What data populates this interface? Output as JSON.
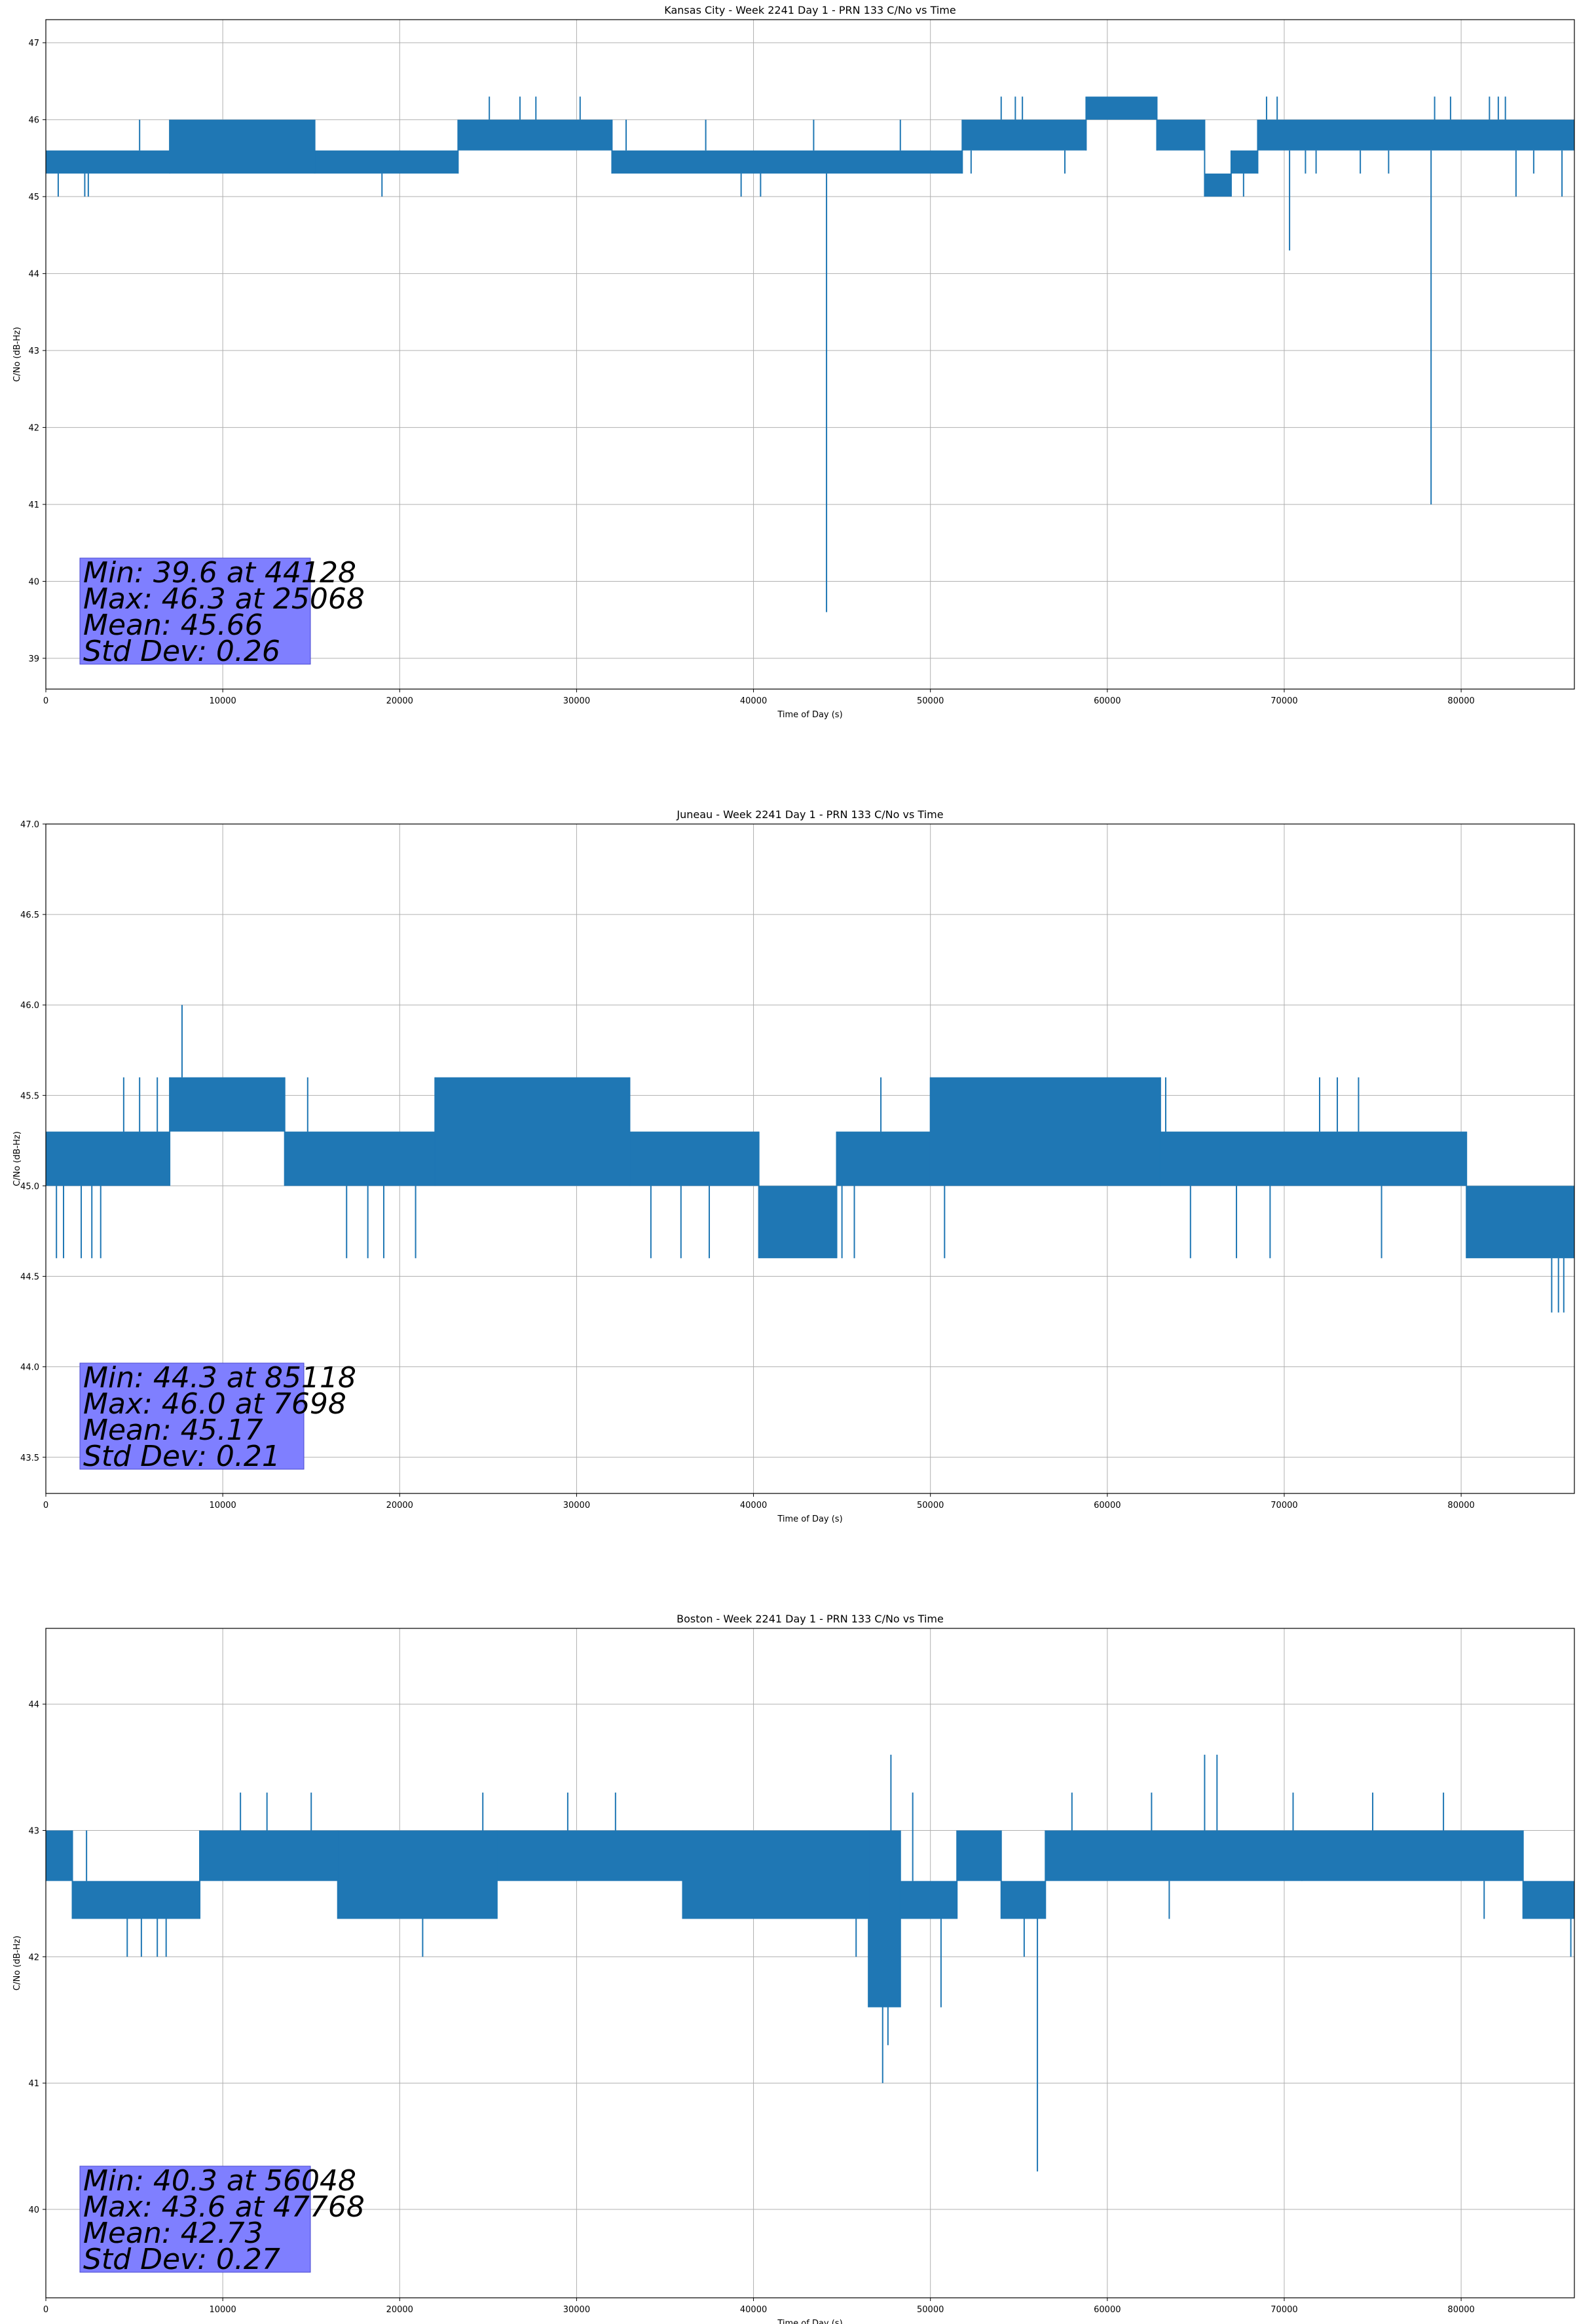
{
  "chart_data": [
    {
      "type": "line",
      "title": "Kansas City - Week 2241 Day 1 - PRN 133 C/No vs Time",
      "xlabel": "Time of Day (s)",
      "ylabel": "C/No (dB-Hz)",
      "xlim": [
        0,
        86400
      ],
      "ylim": [
        38.6,
        47.3
      ],
      "xticks": [
        0,
        10000,
        20000,
        30000,
        40000,
        50000,
        60000,
        70000,
        80000
      ],
      "yticks": [
        39,
        40,
        41,
        42,
        43,
        44,
        45,
        46,
        47
      ],
      "grid": true,
      "color": "#1f77b4",
      "series": [
        {
          "bands": [
            {
              "x0": 0,
              "x1": 7000,
              "low": 45.3,
              "high": 45.6
            },
            {
              "x0": 7000,
              "x1": 15200,
              "low": 45.3,
              "high": 46.0
            },
            {
              "x0": 15200,
              "x1": 23300,
              "low": 45.3,
              "high": 45.6
            },
            {
              "x0": 23300,
              "x1": 32000,
              "low": 45.6,
              "high": 46.0
            },
            {
              "x0": 32000,
              "x1": 51800,
              "low": 45.3,
              "high": 45.6
            },
            {
              "x0": 51800,
              "x1": 58800,
              "low": 45.6,
              "high": 46.0
            },
            {
              "x0": 58800,
              "x1": 62800,
              "low": 46.0,
              "high": 46.3
            },
            {
              "x0": 62800,
              "x1": 65500,
              "low": 45.6,
              "high": 46.0
            },
            {
              "x0": 65500,
              "x1": 67000,
              "low": 45.0,
              "high": 45.3
            },
            {
              "x0": 67000,
              "x1": 68500,
              "low": 45.3,
              "high": 45.6
            },
            {
              "x0": 68500,
              "x1": 86400,
              "low": 45.6,
              "high": 46.0
            }
          ],
          "spikes": [
            {
              "x": 700,
              "y": 45.0
            },
            {
              "x": 2200,
              "y": 45.0
            },
            {
              "x": 2400,
              "y": 45.0
            },
            {
              "x": 5300,
              "y": 46.0
            },
            {
              "x": 19000,
              "y": 45.0
            },
            {
              "x": 25068,
              "y": 46.3
            },
            {
              "x": 26800,
              "y": 46.3
            },
            {
              "x": 27700,
              "y": 46.3
            },
            {
              "x": 30200,
              "y": 46.3
            },
            {
              "x": 32800,
              "y": 46.0
            },
            {
              "x": 37300,
              "y": 46.0
            },
            {
              "x": 39300,
              "y": 45.0
            },
            {
              "x": 40400,
              "y": 45.0
            },
            {
              "x": 43400,
              "y": 46.0
            },
            {
              "x": 44128,
              "y": 39.6
            },
            {
              "x": 48300,
              "y": 46.0
            },
            {
              "x": 52300,
              "y": 45.3
            },
            {
              "x": 54000,
              "y": 46.3
            },
            {
              "x": 54800,
              "y": 46.3
            },
            {
              "x": 55200,
              "y": 46.3
            },
            {
              "x": 57600,
              "y": 45.3
            },
            {
              "x": 64000,
              "y": 45.6
            },
            {
              "x": 64900,
              "y": 45.6
            },
            {
              "x": 67700,
              "y": 45.0
            },
            {
              "x": 69000,
              "y": 46.3
            },
            {
              "x": 69600,
              "y": 46.3
            },
            {
              "x": 70300,
              "y": 44.3
            },
            {
              "x": 71200,
              "y": 45.3
            },
            {
              "x": 71800,
              "y": 45.3
            },
            {
              "x": 74300,
              "y": 45.3
            },
            {
              "x": 75900,
              "y": 45.3
            },
            {
              "x": 78300,
              "y": 41.0
            },
            {
              "x": 78500,
              "y": 46.3
            },
            {
              "x": 79400,
              "y": 46.3
            },
            {
              "x": 81600,
              "y": 46.3
            },
            {
              "x": 82100,
              "y": 46.3
            },
            {
              "x": 82500,
              "y": 46.3
            },
            {
              "x": 83100,
              "y": 45.0
            },
            {
              "x": 84100,
              "y": 45.3
            },
            {
              "x": 85700,
              "y": 45.0
            }
          ]
        }
      ],
      "stats": [
        "Min: 39.6 at 44128",
        "Max: 46.3 at 25068",
        "Mean: 45.66",
        "Std Dev: 0.26"
      ]
    },
    {
      "type": "line",
      "title": "Juneau - Week 2241 Day 1 - PRN 133 C/No vs Time",
      "xlabel": "Time of Day (s)",
      "ylabel": "C/No (dB-Hz)",
      "xlim": [
        0,
        86400
      ],
      "ylim": [
        43.3,
        47.0
      ],
      "xticks": [
        0,
        10000,
        20000,
        30000,
        40000,
        50000,
        60000,
        70000,
        80000
      ],
      "yticks": [
        43.5,
        44.0,
        44.5,
        45.0,
        45.5,
        46.0,
        46.5,
        47.0
      ],
      "grid": true,
      "color": "#1f77b4",
      "series": [
        {
          "bands": [
            {
              "x0": 0,
              "x1": 7000,
              "low": 45.0,
              "high": 45.3
            },
            {
              "x0": 7000,
              "x1": 13500,
              "low": 45.3,
              "high": 45.6
            },
            {
              "x0": 13500,
              "x1": 22000,
              "low": 45.0,
              "high": 45.3
            },
            {
              "x0": 22000,
              "x1": 33000,
              "low": 45.0,
              "high": 45.6
            },
            {
              "x0": 33000,
              "x1": 40300,
              "low": 45.0,
              "high": 45.3
            },
            {
              "x0": 40300,
              "x1": 44700,
              "low": 44.6,
              "high": 45.0
            },
            {
              "x0": 44700,
              "x1": 50000,
              "low": 45.0,
              "high": 45.3
            },
            {
              "x0": 50000,
              "x1": 63000,
              "low": 45.0,
              "high": 45.6
            },
            {
              "x0": 63000,
              "x1": 80300,
              "low": 45.0,
              "high": 45.3
            },
            {
              "x0": 80300,
              "x1": 86400,
              "low": 44.6,
              "high": 45.0
            }
          ],
          "spikes": [
            {
              "x": 600,
              "y": 44.6
            },
            {
              "x": 1000,
              "y": 44.6
            },
            {
              "x": 2000,
              "y": 44.6
            },
            {
              "x": 2600,
              "y": 44.6
            },
            {
              "x": 3100,
              "y": 44.6
            },
            {
              "x": 4400,
              "y": 45.6
            },
            {
              "x": 5300,
              "y": 45.6
            },
            {
              "x": 6300,
              "y": 45.6
            },
            {
              "x": 7698,
              "y": 46.0
            },
            {
              "x": 14800,
              "y": 45.6
            },
            {
              "x": 17000,
              "y": 44.6
            },
            {
              "x": 18200,
              "y": 44.6
            },
            {
              "x": 19100,
              "y": 44.6
            },
            {
              "x": 20900,
              "y": 44.6
            },
            {
              "x": 34200,
              "y": 44.6
            },
            {
              "x": 35900,
              "y": 44.6
            },
            {
              "x": 37500,
              "y": 44.6
            },
            {
              "x": 45000,
              "y": 44.6
            },
            {
              "x": 45700,
              "y": 44.6
            },
            {
              "x": 47200,
              "y": 45.6
            },
            {
              "x": 50800,
              "y": 44.6
            },
            {
              "x": 63300,
              "y": 45.6
            },
            {
              "x": 64700,
              "y": 44.6
            },
            {
              "x": 67300,
              "y": 44.6
            },
            {
              "x": 69200,
              "y": 44.6
            },
            {
              "x": 72000,
              "y": 45.6
            },
            {
              "x": 73000,
              "y": 45.6
            },
            {
              "x": 74200,
              "y": 45.6
            },
            {
              "x": 75500,
              "y": 44.6
            },
            {
              "x": 85118,
              "y": 44.3
            },
            {
              "x": 85500,
              "y": 44.3
            },
            {
              "x": 85800,
              "y": 44.3
            }
          ]
        }
      ],
      "stats": [
        "Min: 44.3 at 85118",
        "Max: 46.0 at 7698",
        "Mean: 45.17",
        "Std Dev: 0.21"
      ]
    },
    {
      "type": "line",
      "title": "Boston - Week 2241 Day 1 - PRN 133 C/No vs Time",
      "xlabel": "Time of Day (s)",
      "ylabel": "C/No (dB-Hz)",
      "xlim": [
        0,
        86400
      ],
      "ylim": [
        39.3,
        44.6
      ],
      "xticks": [
        0,
        10000,
        20000,
        30000,
        40000,
        50000,
        60000,
        70000,
        80000
      ],
      "yticks": [
        40,
        41,
        42,
        43,
        44
      ],
      "grid": true,
      "color": "#1f77b4",
      "series": [
        {
          "bands": [
            {
              "x0": 0,
              "x1": 1500,
              "low": 42.6,
              "high": 43.0
            },
            {
              "x0": 1500,
              "x1": 8700,
              "low": 42.3,
              "high": 42.6
            },
            {
              "x0": 8700,
              "x1": 16500,
              "low": 42.6,
              "high": 43.0
            },
            {
              "x0": 16500,
              "x1": 25500,
              "low": 42.3,
              "high": 43.0
            },
            {
              "x0": 25500,
              "x1": 36000,
              "low": 42.6,
              "high": 43.0
            },
            {
              "x0": 36000,
              "x1": 46500,
              "low": 42.3,
              "high": 43.0
            },
            {
              "x0": 46500,
              "x1": 48300,
              "low": 41.6,
              "high": 43.0
            },
            {
              "x0": 48300,
              "x1": 51500,
              "low": 42.3,
              "high": 42.6
            },
            {
              "x0": 51500,
              "x1": 54000,
              "low": 42.6,
              "high": 43.0
            },
            {
              "x0": 54000,
              "x1": 56500,
              "low": 42.3,
              "high": 42.6
            },
            {
              "x0": 56500,
              "x1": 71000,
              "low": 42.6,
              "high": 43.0
            },
            {
              "x0": 71000,
              "x1": 83500,
              "low": 42.6,
              "high": 43.0
            },
            {
              "x0": 83500,
              "x1": 86400,
              "low": 42.3,
              "high": 42.6
            }
          ],
          "spikes": [
            {
              "x": 2300,
              "y": 43.0
            },
            {
              "x": 4600,
              "y": 42.0
            },
            {
              "x": 5400,
              "y": 42.0
            },
            {
              "x": 6300,
              "y": 42.0
            },
            {
              "x": 6800,
              "y": 42.0
            },
            {
              "x": 11000,
              "y": 43.3
            },
            {
              "x": 12500,
              "y": 43.3
            },
            {
              "x": 15000,
              "y": 43.3
            },
            {
              "x": 21300,
              "y": 42.0
            },
            {
              "x": 24700,
              "y": 43.3
            },
            {
              "x": 29500,
              "y": 43.3
            },
            {
              "x": 32200,
              "y": 43.3
            },
            {
              "x": 45800,
              "y": 42.0
            },
            {
              "x": 47300,
              "y": 41.0
            },
            {
              "x": 47768,
              "y": 43.6
            },
            {
              "x": 47600,
              "y": 41.3
            },
            {
              "x": 48000,
              "y": 41.6
            },
            {
              "x": 49000,
              "y": 43.3
            },
            {
              "x": 50600,
              "y": 41.6
            },
            {
              "x": 55300,
              "y": 42.0
            },
            {
              "x": 56048,
              "y": 40.3
            },
            {
              "x": 58000,
              "y": 43.3
            },
            {
              "x": 62500,
              "y": 43.3
            },
            {
              "x": 63500,
              "y": 42.3
            },
            {
              "x": 65500,
              "y": 43.6
            },
            {
              "x": 66200,
              "y": 43.6
            },
            {
              "x": 70500,
              "y": 43.3
            },
            {
              "x": 75000,
              "y": 43.3
            },
            {
              "x": 79000,
              "y": 43.3
            },
            {
              "x": 81300,
              "y": 42.3
            },
            {
              "x": 84500,
              "y": 42.3
            },
            {
              "x": 86200,
              "y": 42.0
            }
          ]
        }
      ],
      "stats": [
        "Min: 40.3 at 56048",
        "Max: 43.6 at 47768",
        "Mean: 42.73",
        "Std Dev: 0.27"
      ]
    }
  ]
}
